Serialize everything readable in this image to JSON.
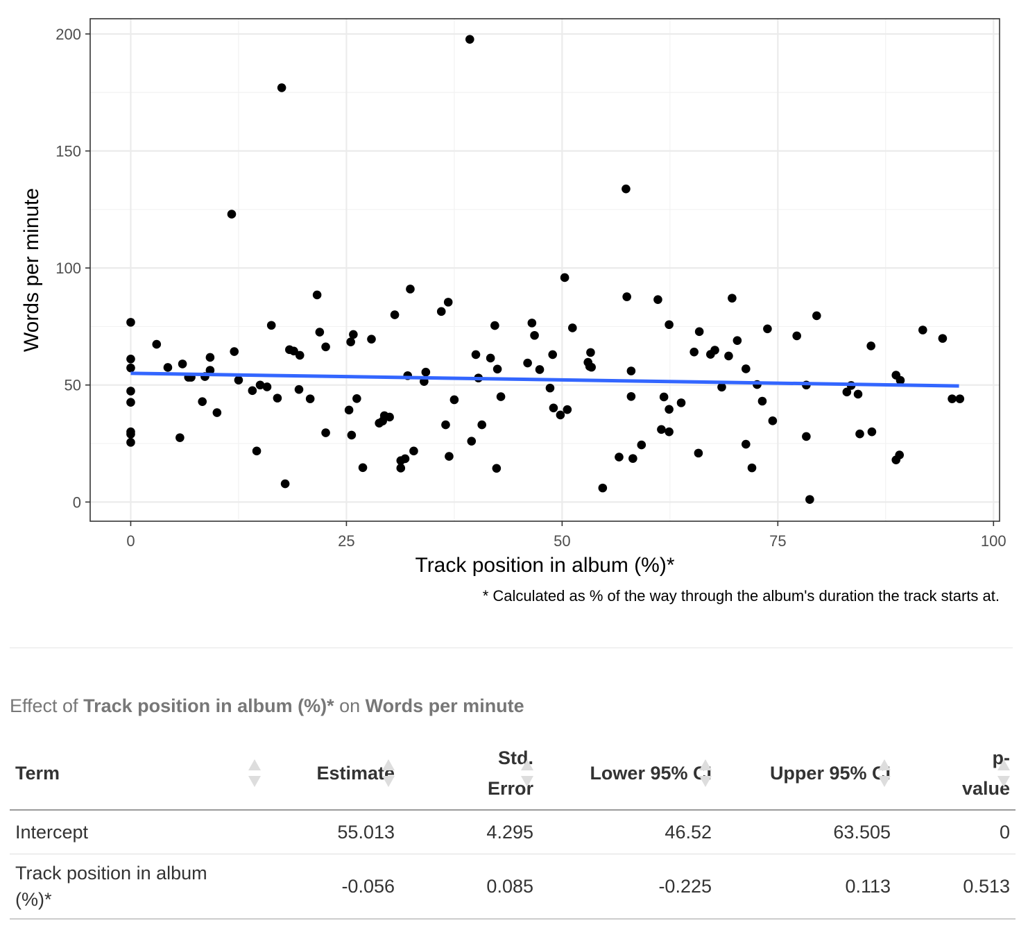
{
  "chart_data": {
    "type": "scatter",
    "xlabel": "Track position in album (%)*",
    "ylabel": "Words per minute",
    "footnote": "* Calculated as % of the way through the album's duration the track starts at.",
    "xlim": [
      -4.7,
      100.7
    ],
    "ylim": [
      -8.2,
      206.5
    ],
    "x_ticks": [
      0,
      25,
      50,
      75,
      100
    ],
    "y_ticks": [
      0,
      50,
      100,
      150,
      200
    ],
    "x_tick_labels": [
      "0",
      "25",
      "50",
      "75",
      "100"
    ],
    "y_tick_labels": [
      "0",
      "50",
      "100",
      "150",
      "200"
    ],
    "x_minor": [
      12.5,
      37.5,
      62.5,
      87.5
    ],
    "y_minor": [
      25,
      75,
      125,
      175
    ],
    "grid": true,
    "point_color": "#000000",
    "line_color": "#3366ff",
    "fit_line": {
      "x": [
        0,
        96
      ],
      "y": [
        55.0,
        49.6
      ]
    },
    "points": [
      [
        0,
        76.8
      ],
      [
        0,
        61.1
      ],
      [
        0,
        57.3
      ],
      [
        0,
        47.4
      ],
      [
        0,
        42.6
      ],
      [
        0,
        30.0
      ],
      [
        0,
        29.0
      ],
      [
        0,
        25.5
      ],
      [
        3.0,
        67.4
      ],
      [
        4.3,
        57.5
      ],
      [
        5.7,
        27.5
      ],
      [
        6.0,
        59.0
      ],
      [
        6.7,
        53.3
      ],
      [
        7.0,
        53.3
      ],
      [
        8.3,
        42.9
      ],
      [
        8.6,
        53.6
      ],
      [
        9.2,
        61.8
      ],
      [
        9.2,
        56.3
      ],
      [
        10.0,
        38.2
      ],
      [
        11.7,
        123.0
      ],
      [
        12.0,
        64.3
      ],
      [
        12.5,
        52.1
      ],
      [
        14.1,
        47.6
      ],
      [
        14.6,
        21.8
      ],
      [
        15.0,
        50.0
      ],
      [
        15.8,
        49.2
      ],
      [
        16.3,
        75.5
      ],
      [
        17.0,
        44.4
      ],
      [
        17.5,
        177.0
      ],
      [
        17.9,
        7.8
      ],
      [
        18.4,
        65.1
      ],
      [
        18.9,
        64.5
      ],
      [
        19.5,
        48.1
      ],
      [
        19.6,
        62.7
      ],
      [
        20.8,
        44.1
      ],
      [
        21.6,
        88.5
      ],
      [
        21.9,
        72.6
      ],
      [
        22.6,
        66.3
      ],
      [
        22.6,
        29.6
      ],
      [
        25.3,
        39.3
      ],
      [
        25.5,
        68.4
      ],
      [
        25.6,
        28.6
      ],
      [
        25.8,
        71.6
      ],
      [
        26.2,
        44.2
      ],
      [
        26.9,
        14.7
      ],
      [
        27.9,
        69.6
      ],
      [
        28.8,
        33.7
      ],
      [
        29.2,
        34.6
      ],
      [
        29.4,
        36.9
      ],
      [
        30.0,
        36.3
      ],
      [
        30.6,
        80.0
      ],
      [
        31.3,
        17.7
      ],
      [
        31.3,
        14.5
      ],
      [
        31.8,
        18.5
      ],
      [
        32.1,
        54.0
      ],
      [
        32.4,
        91.0
      ],
      [
        32.8,
        21.8
      ],
      [
        34.0,
        51.5
      ],
      [
        34.2,
        55.5
      ],
      [
        36.0,
        81.4
      ],
      [
        36.5,
        33.0
      ],
      [
        36.8,
        85.4
      ],
      [
        36.9,
        19.5
      ],
      [
        37.5,
        43.7
      ],
      [
        39.3,
        197.7
      ],
      [
        39.5,
        26.0
      ],
      [
        40.0,
        63.0
      ],
      [
        40.3,
        53.0
      ],
      [
        40.7,
        33.0
      ],
      [
        41.7,
        61.5
      ],
      [
        42.2,
        75.4
      ],
      [
        42.4,
        14.4
      ],
      [
        42.5,
        56.8
      ],
      [
        42.9,
        45.0
      ],
      [
        46.0,
        59.4
      ],
      [
        46.5,
        76.5
      ],
      [
        46.8,
        71.2
      ],
      [
        47.4,
        56.6
      ],
      [
        48.6,
        48.7
      ],
      [
        48.9,
        63.0
      ],
      [
        49.0,
        40.2
      ],
      [
        49.8,
        37.2
      ],
      [
        50.3,
        95.9
      ],
      [
        50.6,
        39.5
      ],
      [
        51.2,
        74.4
      ],
      [
        53.0,
        59.7
      ],
      [
        53.2,
        57.9
      ],
      [
        53.3,
        63.9
      ],
      [
        53.4,
        57.6
      ],
      [
        54.7,
        6.0
      ],
      [
        56.6,
        19.2
      ],
      [
        57.4,
        133.8
      ],
      [
        57.5,
        87.7
      ],
      [
        58.0,
        56.0
      ],
      [
        58.0,
        45.1
      ],
      [
        58.2,
        18.6
      ],
      [
        59.2,
        24.4
      ],
      [
        61.1,
        86.5
      ],
      [
        61.5,
        31.0
      ],
      [
        61.8,
        44.9
      ],
      [
        62.4,
        75.8
      ],
      [
        62.4,
        39.6
      ],
      [
        62.4,
        30.0
      ],
      [
        63.8,
        42.4
      ],
      [
        65.3,
        64.1
      ],
      [
        65.8,
        20.9
      ],
      [
        65.9,
        72.8
      ],
      [
        67.2,
        63.1
      ],
      [
        67.7,
        64.9
      ],
      [
        68.5,
        49.1
      ],
      [
        69.3,
        62.4
      ],
      [
        69.7,
        87.1
      ],
      [
        70.3,
        69.0
      ],
      [
        71.3,
        56.9
      ],
      [
        71.3,
        24.7
      ],
      [
        72.0,
        14.6
      ],
      [
        72.6,
        50.2
      ],
      [
        73.2,
        43.1
      ],
      [
        73.8,
        74.0
      ],
      [
        74.4,
        34.7
      ],
      [
        77.2,
        71.0
      ],
      [
        78.3,
        50.0
      ],
      [
        78.3,
        28.0
      ],
      [
        78.7,
        1.1
      ],
      [
        79.5,
        79.6
      ],
      [
        83.0,
        47.0
      ],
      [
        83.5,
        49.8
      ],
      [
        84.3,
        46.1
      ],
      [
        84.5,
        29.1
      ],
      [
        85.8,
        66.7
      ],
      [
        85.9,
        30.0
      ],
      [
        88.7,
        54.2
      ],
      [
        88.7,
        18.0
      ],
      [
        89.1,
        20.1
      ],
      [
        89.2,
        52.0
      ],
      [
        91.8,
        73.5
      ],
      [
        94.1,
        69.9
      ],
      [
        95.2,
        44.1
      ],
      [
        96.1,
        44.1
      ]
    ]
  },
  "table": {
    "caption_prefix": "Effect of ",
    "caption_predictor": "Track position in album (%)*",
    "caption_mid": " on ",
    "caption_outcome": "Words per minute",
    "headers": [
      "Term",
      "Estimate",
      "Std. Error",
      "Lower 95% CI",
      "Upper 95% CI",
      "p-value"
    ],
    "rows": [
      {
        "term": "Intercept",
        "estimate": "55.013",
        "std_error": "4.295",
        "lower": "46.52",
        "upper": "63.505",
        "p": "0"
      },
      {
        "term": "Track position in album (%)*",
        "estimate": "-0.056",
        "std_error": "0.085",
        "lower": "-0.225",
        "upper": "0.113",
        "p": "0.513"
      }
    ]
  }
}
